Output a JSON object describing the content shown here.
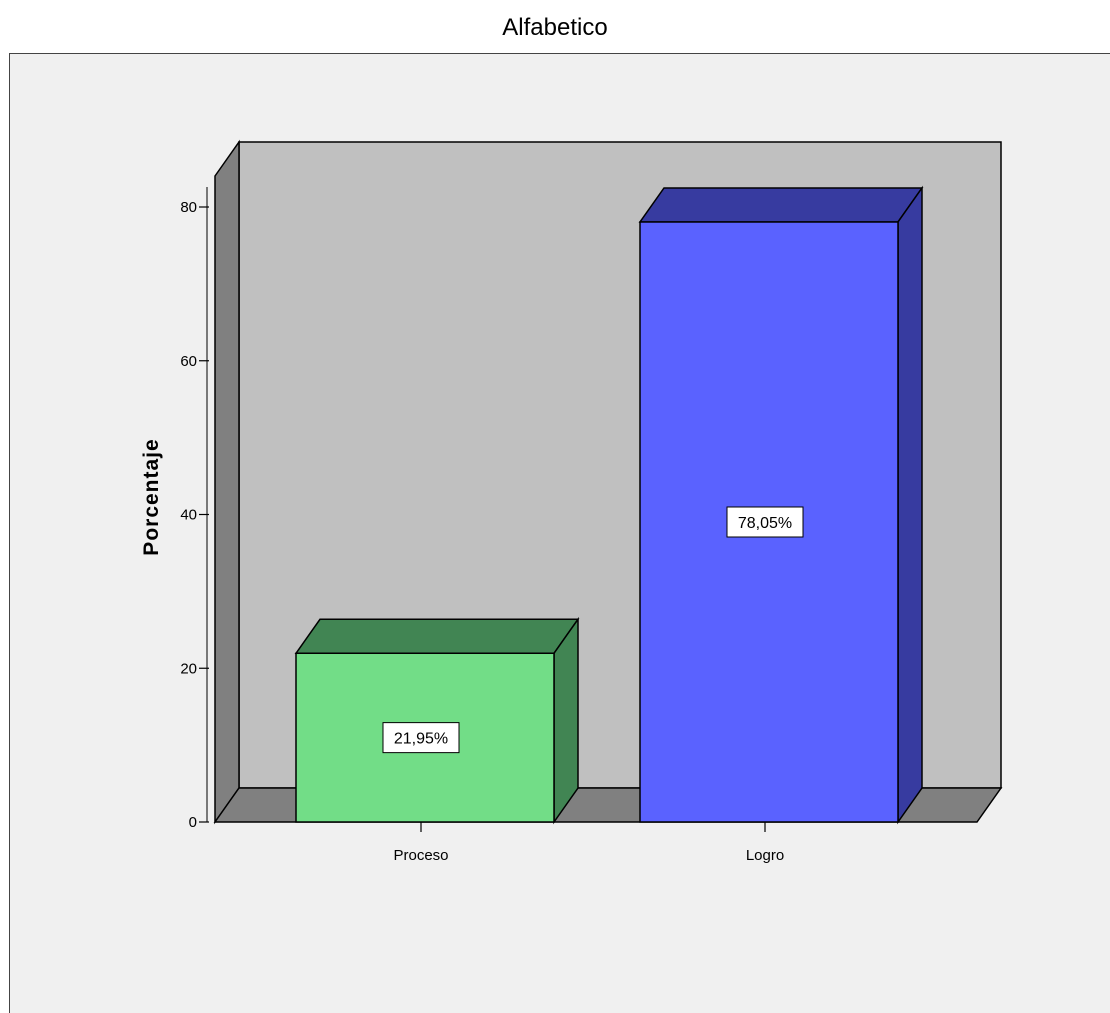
{
  "chart_data": {
    "type": "bar",
    "title": "Alfabetico",
    "ylabel": "Porcentaje",
    "xlabel": "",
    "categories": [
      "Proceso",
      "Logro"
    ],
    "values": [
      21.95,
      78.05
    ],
    "data_labels": [
      "21,95%",
      "78,05%"
    ],
    "y_ticks": [
      0,
      20,
      40,
      60,
      80
    ],
    "ylim": [
      0,
      80
    ],
    "three_d": true,
    "grid": false,
    "colors": {
      "Proceso": {
        "front": "#72dd87",
        "top": "#418553",
        "side": "#418553"
      },
      "Logro": {
        "front": "#5a62ff",
        "top": "#373ba0",
        "side": "#373ba0"
      },
      "back_wall": "#c0c0c0",
      "floor_side": "#808080",
      "chart_background": "#f0f0f0"
    }
  }
}
